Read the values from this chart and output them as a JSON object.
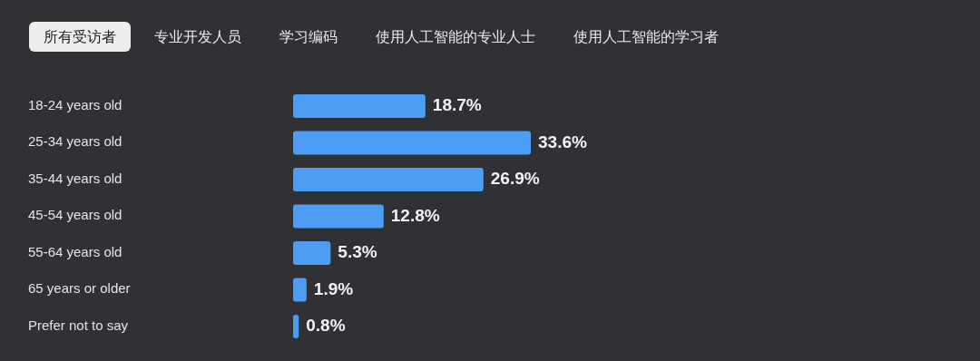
{
  "chart_data": {
    "type": "bar",
    "orientation": "horizontal",
    "annotations": [
      "所有受访者",
      "专业开发人员",
      "学习编码",
      "使用人工智能的专业人士",
      "使用人工智能的学习者"
    ],
    "categories": [
      "18-24 years old",
      "25-34 years old",
      "35-44 years old",
      "45-54 years old",
      "55-64 years old",
      "65 years or older",
      "Prefer not to say"
    ],
    "values": [
      18.7,
      33.6,
      26.9,
      12.8,
      5.3,
      1.9,
      0.8
    ],
    "value_labels": [
      "18.7%",
      "33.6%",
      "26.9%",
      "12.8%",
      "5.3%",
      "1.9%",
      "0.8%"
    ],
    "color": "#4e9df5"
  }
}
